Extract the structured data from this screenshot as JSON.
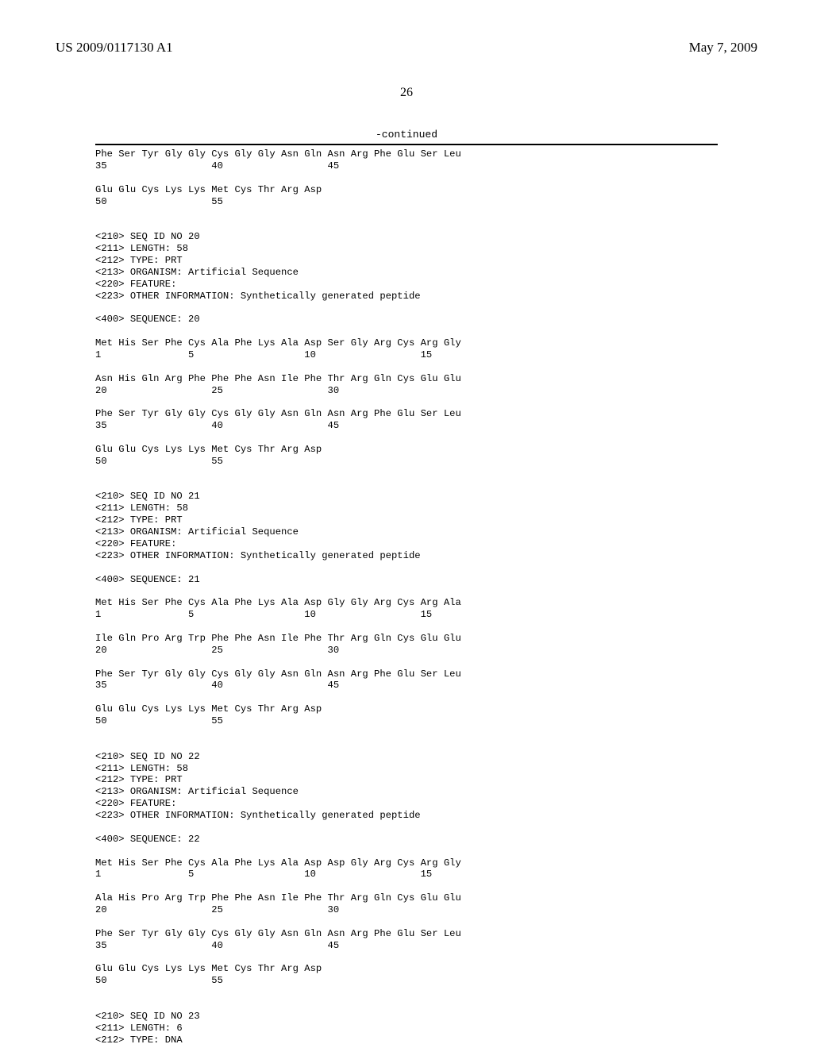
{
  "header": {
    "pub_number": "US 2009/0117130 A1",
    "pub_date": "May 7, 2009"
  },
  "page_number": "26",
  "continued_label": "-continued",
  "sequence_text": "Phe Ser Tyr Gly Gly Cys Gly Gly Asn Gln Asn Arg Phe Glu Ser Leu\n35                  40                  45\n\nGlu Glu Cys Lys Lys Met Cys Thr Arg Asp\n50                  55\n\n\n<210> SEQ ID NO 20\n<211> LENGTH: 58\n<212> TYPE: PRT\n<213> ORGANISM: Artificial Sequence\n<220> FEATURE:\n<223> OTHER INFORMATION: Synthetically generated peptide\n\n<400> SEQUENCE: 20\n\nMet His Ser Phe Cys Ala Phe Lys Ala Asp Ser Gly Arg Cys Arg Gly\n1               5                   10                  15\n\nAsn His Gln Arg Phe Phe Phe Asn Ile Phe Thr Arg Gln Cys Glu Glu\n20                  25                  30\n\nPhe Ser Tyr Gly Gly Cys Gly Gly Asn Gln Asn Arg Phe Glu Ser Leu\n35                  40                  45\n\nGlu Glu Cys Lys Lys Met Cys Thr Arg Asp\n50                  55\n\n\n<210> SEQ ID NO 21\n<211> LENGTH: 58\n<212> TYPE: PRT\n<213> ORGANISM: Artificial Sequence\n<220> FEATURE:\n<223> OTHER INFORMATION: Synthetically generated peptide\n\n<400> SEQUENCE: 21\n\nMet His Ser Phe Cys Ala Phe Lys Ala Asp Gly Gly Arg Cys Arg Ala\n1               5                   10                  15\n\nIle Gln Pro Arg Trp Phe Phe Asn Ile Phe Thr Arg Gln Cys Glu Glu\n20                  25                  30\n\nPhe Ser Tyr Gly Gly Cys Gly Gly Asn Gln Asn Arg Phe Glu Ser Leu\n35                  40                  45\n\nGlu Glu Cys Lys Lys Met Cys Thr Arg Asp\n50                  55\n\n\n<210> SEQ ID NO 22\n<211> LENGTH: 58\n<212> TYPE: PRT\n<213> ORGANISM: Artificial Sequence\n<220> FEATURE:\n<223> OTHER INFORMATION: Synthetically generated peptide\n\n<400> SEQUENCE: 22\n\nMet His Ser Phe Cys Ala Phe Lys Ala Asp Asp Gly Arg Cys Arg Gly\n1               5                   10                  15\n\nAla His Pro Arg Trp Phe Phe Asn Ile Phe Thr Arg Gln Cys Glu Glu\n20                  25                  30\n\nPhe Ser Tyr Gly Gly Cys Gly Gly Asn Gln Asn Arg Phe Glu Ser Leu\n35                  40                  45\n\nGlu Glu Cys Lys Lys Met Cys Thr Arg Asp\n50                  55\n\n\n<210> SEQ ID NO 23\n<211> LENGTH: 6\n<212> TYPE: DNA"
}
